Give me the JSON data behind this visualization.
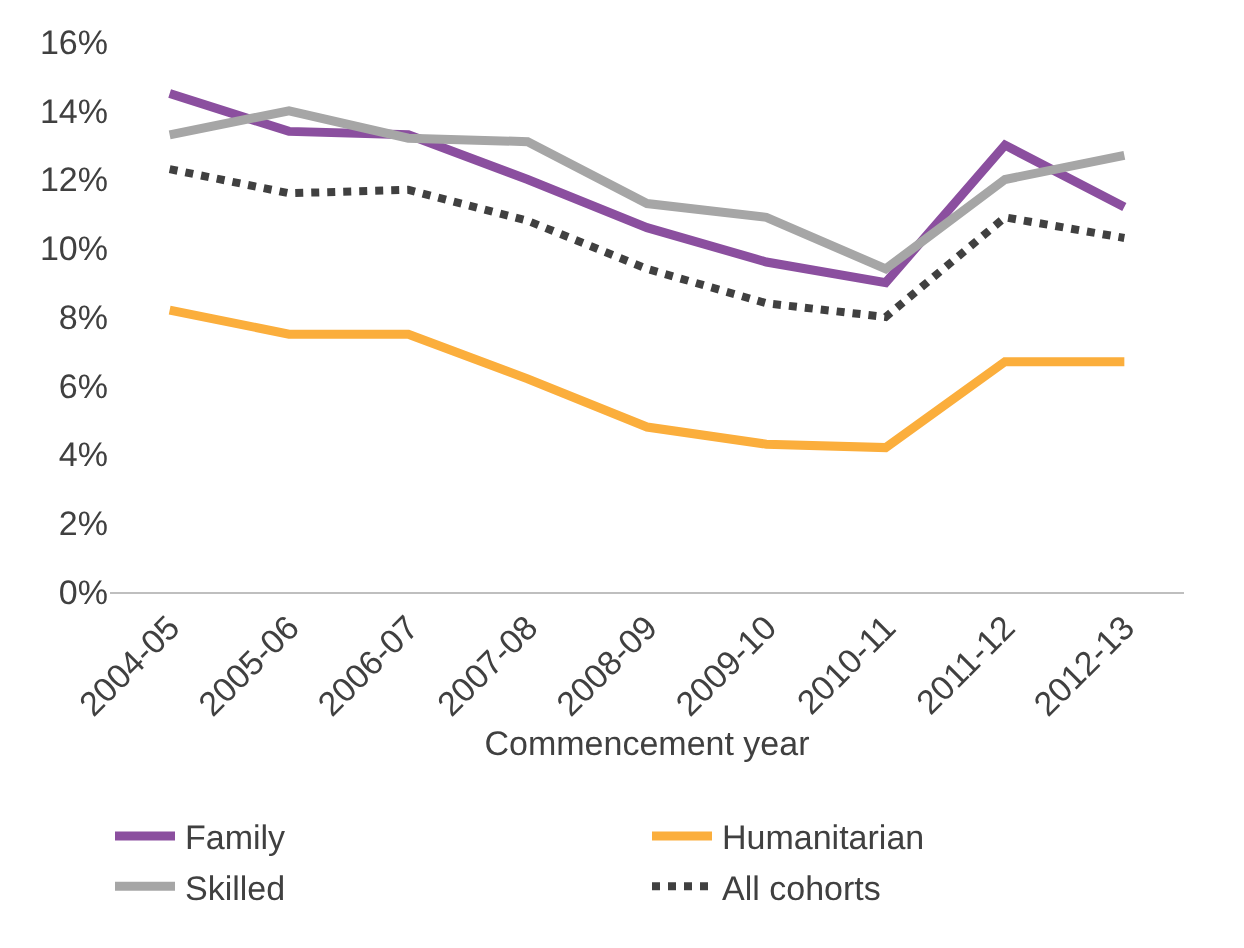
{
  "chart_data": {
    "type": "line",
    "xlabel": "Commencement year",
    "categories": [
      "2004-05",
      "2005-06",
      "2006-07",
      "2007-08",
      "2008-09",
      "2009-10",
      "2010-11",
      "2011-12",
      "2012-13"
    ],
    "series": [
      {
        "name": "Family",
        "color": "#8b4f9f",
        "values": [
          14.5,
          13.4,
          13.3,
          12.0,
          10.6,
          9.6,
          9.0,
          13.0,
          11.2
        ]
      },
      {
        "name": "Humanitarian",
        "color": "#fbae3c",
        "values": [
          8.2,
          7.5,
          7.5,
          6.2,
          4.8,
          4.3,
          4.2,
          6.7,
          6.7
        ]
      },
      {
        "name": "Skilled",
        "color": "#a6a6a6",
        "values": [
          13.3,
          14.0,
          13.2,
          13.1,
          11.3,
          10.9,
          9.4,
          12.0,
          12.7
        ]
      },
      {
        "name": "All cohorts",
        "color": "#404040",
        "line_style": "dotted",
        "values": [
          12.3,
          11.6,
          11.7,
          10.8,
          9.4,
          8.4,
          8.0,
          10.9,
          10.3
        ]
      }
    ],
    "ylim": [
      0,
      16
    ],
    "yticks": [
      {
        "value": 0,
        "label": "0%"
      },
      {
        "value": 2,
        "label": "2%"
      },
      {
        "value": 4,
        "label": "4%"
      },
      {
        "value": 6,
        "label": "6%"
      },
      {
        "value": 8,
        "label": "8%"
      },
      {
        "value": 10,
        "label": "10%"
      },
      {
        "value": 12,
        "label": "12%"
      },
      {
        "value": 14,
        "label": "14%"
      },
      {
        "value": 16,
        "label": "16%"
      }
    ],
    "grid": false,
    "legend": "bottom",
    "marker": "none",
    "line_style": "solid"
  }
}
